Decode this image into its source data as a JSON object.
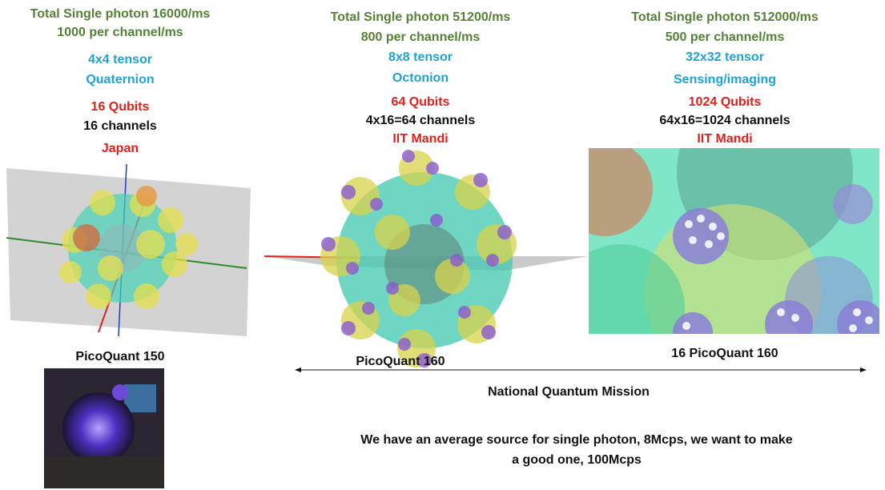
{
  "columns": [
    {
      "lines": [
        "Total Single photon 16000/ms",
        "1000 per channel/ms",
        "4x4 tensor",
        "Quaternion",
        "16 Qubits",
        "16 channels",
        "Japan"
      ],
      "caption": "PicoQuant 150"
    },
    {
      "lines": [
        "Total Single photon 51200/ms",
        "800 per channel/ms",
        "8x8 tensor",
        "Octonion",
        "64 Qubits",
        "4x16=64 channels",
        "IIT Mandi"
      ],
      "caption": "PicoQuant 160"
    },
    {
      "lines": [
        "Total Single photon 512000/ms",
        "500 per channel/ms",
        "32x32 tensor",
        "Sensing/imaging",
        "1024 Qubits",
        "64x16=1024 channels",
        "IIT Mandi"
      ],
      "caption": "16 PicoQuant 160"
    }
  ],
  "arrow_label": "National Quantum Mission",
  "footer": "We have an average source for single photon, 8Mcps, we want to make a good one, 100Mcps"
}
